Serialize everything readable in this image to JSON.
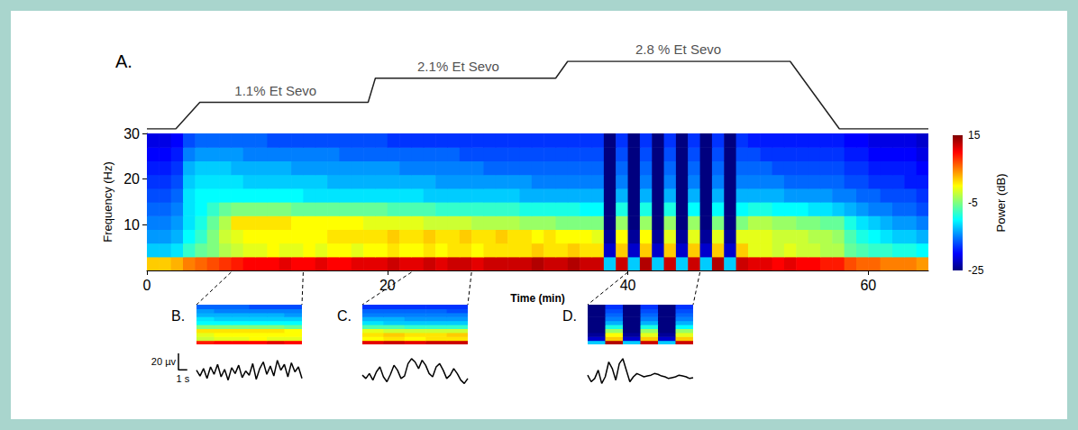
{
  "chart_data": {
    "type": "spectrogram",
    "panel_label": "A.",
    "x_label": "Time (min)",
    "y_label": "Frequency (Hz)",
    "xlim": [
      0,
      65
    ],
    "xticks": [
      0,
      20,
      40,
      60
    ],
    "ylim": [
      0,
      30
    ],
    "yticks": [
      10,
      20,
      30
    ],
    "grid": false,
    "times": [
      0,
      1,
      2,
      3,
      4,
      5,
      6,
      7,
      8,
      9,
      10,
      11,
      12,
      13,
      14,
      15,
      16,
      17,
      18,
      19,
      20,
      21,
      22,
      23,
      24,
      25,
      26,
      27,
      28,
      29,
      30,
      31,
      32,
      33,
      34,
      35,
      36,
      37,
      38,
      39,
      40,
      41,
      42,
      43,
      44,
      45,
      46,
      47,
      48,
      49,
      50,
      51,
      52,
      53,
      54,
      55,
      56,
      57,
      58,
      59,
      60,
      61,
      62,
      63,
      64
    ],
    "frequencies": [
      0,
      3,
      6,
      9,
      12,
      15,
      18,
      21,
      24,
      27
    ],
    "power": [
      [
        2,
        2,
        3,
        5,
        6,
        7,
        8,
        9,
        10,
        10,
        10,
        11,
        10,
        10,
        11,
        10,
        10,
        11,
        11,
        11,
        12,
        11,
        11,
        12,
        11,
        12,
        12,
        11,
        12,
        12,
        12,
        12,
        13,
        12,
        12,
        13,
        12,
        12,
        -12,
        12,
        -12,
        13,
        -12,
        12,
        -12,
        12,
        -12,
        13,
        -12,
        12,
        11,
        11,
        10,
        11,
        10,
        10,
        9,
        9,
        7,
        6,
        6,
        5,
        5,
        5,
        4
      ],
      [
        -12,
        -12,
        -11,
        -8,
        -6,
        -5,
        -3,
        -2,
        -1,
        -1,
        0,
        -1,
        -1,
        0,
        -1,
        0,
        0,
        -1,
        0,
        0,
        1,
        0,
        0,
        1,
        0,
        1,
        1,
        0,
        1,
        1,
        1,
        1,
        2,
        1,
        1,
        2,
        1,
        1,
        -22,
        2,
        -22,
        2,
        -22,
        2,
        -22,
        2,
        -22,
        2,
        -22,
        2,
        -1,
        -1,
        -2,
        -1,
        -2,
        -2,
        -3,
        -3,
        -6,
        -7,
        -8,
        -8,
        -9,
        -9,
        -10
      ],
      [
        -14,
        -14,
        -13,
        -10,
        -8,
        -5,
        -2,
        -1,
        0,
        0,
        0,
        0,
        0,
        0,
        0,
        1,
        1,
        1,
        1,
        1,
        2,
        1,
        1,
        2,
        1,
        1,
        2,
        1,
        1,
        2,
        1,
        1,
        0,
        1,
        0,
        0,
        0,
        -1,
        -24,
        0,
        -24,
        0,
        -24,
        -1,
        -24,
        -1,
        -24,
        -1,
        -24,
        -1,
        -1,
        -1,
        -2,
        -2,
        -2,
        -3,
        -3,
        -4,
        -7,
        -9,
        -10,
        -11,
        -12,
        -12,
        -13
      ],
      [
        -15,
        -15,
        -14,
        -11,
        -9,
        -6,
        -3,
        1,
        1,
        1,
        1,
        1,
        0,
        0,
        0,
        0,
        0,
        0,
        -1,
        -1,
        -1,
        -1,
        -1,
        -2,
        -2,
        -2,
        -2,
        -3,
        -3,
        -3,
        -3,
        -4,
        -4,
        -4,
        -5,
        -5,
        -5,
        -5,
        -25,
        -4,
        -25,
        -4,
        -25,
        -4,
        -25,
        -4,
        -25,
        -5,
        -25,
        -5,
        -3,
        -3,
        -4,
        -4,
        -5,
        -5,
        -6,
        -6,
        -9,
        -11,
        -12,
        -13,
        -14,
        -14,
        -15
      ],
      [
        -16,
        -16,
        -15,
        -11,
        -10,
        -8,
        -6,
        -5,
        -5,
        -5,
        -5,
        -5,
        -6,
        -6,
        -6,
        -6,
        -6,
        -6,
        -6,
        -6,
        -7,
        -7,
        -7,
        -7,
        -8,
        -8,
        -8,
        -8,
        -8,
        -8,
        -8,
        -9,
        -9,
        -9,
        -9,
        -9,
        -10,
        -10,
        -25,
        -9,
        -25,
        -9,
        -25,
        -9,
        -25,
        -10,
        -25,
        -10,
        -25,
        -10,
        -9,
        -9,
        -10,
        -10,
        -10,
        -11,
        -11,
        -12,
        -13,
        -14,
        -15,
        -15,
        -16,
        -16,
        -17
      ],
      [
        -17,
        -17,
        -16,
        -11,
        -10,
        -10,
        -10,
        -10,
        -10,
        -10,
        -10,
        -10,
        -10,
        -11,
        -11,
        -11,
        -11,
        -11,
        -11,
        -11,
        -11,
        -11,
        -11,
        -12,
        -12,
        -12,
        -12,
        -12,
        -12,
        -12,
        -12,
        -13,
        -13,
        -13,
        -13,
        -13,
        -13,
        -13,
        -25,
        -13,
        -25,
        -13,
        -25,
        -13,
        -25,
        -13,
        -25,
        -13,
        -25,
        -13,
        -13,
        -13,
        -13,
        -14,
        -14,
        -14,
        -14,
        -15,
        -15,
        -16,
        -16,
        -17,
        -17,
        -17,
        -18
      ],
      [
        -18,
        -18,
        -17,
        -12,
        -11,
        -11,
        -11,
        -11,
        -12,
        -12,
        -12,
        -12,
        -12,
        -12,
        -12,
        -13,
        -13,
        -13,
        -13,
        -13,
        -13,
        -13,
        -13,
        -13,
        -14,
        -14,
        -14,
        -14,
        -14,
        -14,
        -14,
        -14,
        -15,
        -15,
        -15,
        -15,
        -15,
        -15,
        -25,
        -15,
        -25,
        -15,
        -25,
        -15,
        -25,
        -15,
        -25,
        -15,
        -25,
        -15,
        -15,
        -15,
        -15,
        -16,
        -16,
        -16,
        -16,
        -16,
        -17,
        -17,
        -18,
        -18,
        -18,
        -19,
        -19
      ],
      [
        -19,
        -19,
        -18,
        -13,
        -12,
        -12,
        -12,
        -13,
        -13,
        -13,
        -13,
        -13,
        -14,
        -14,
        -14,
        -14,
        -14,
        -14,
        -14,
        -14,
        -14,
        -15,
        -15,
        -15,
        -15,
        -15,
        -15,
        -15,
        -16,
        -16,
        -16,
        -16,
        -16,
        -16,
        -16,
        -16,
        -16,
        -16,
        -25,
        -16,
        -25,
        -16,
        -25,
        -16,
        -25,
        -16,
        -25,
        -16,
        -25,
        -16,
        -16,
        -16,
        -17,
        -17,
        -17,
        -17,
        -17,
        -17,
        -18,
        -18,
        -19,
        -19,
        -19,
        -19,
        -20
      ],
      [
        -20,
        -20,
        -19,
        -15,
        -14,
        -14,
        -14,
        -14,
        -15,
        -15,
        -15,
        -15,
        -15,
        -15,
        -15,
        -15,
        -16,
        -16,
        -16,
        -16,
        -16,
        -16,
        -16,
        -16,
        -16,
        -16,
        -17,
        -17,
        -17,
        -17,
        -17,
        -17,
        -17,
        -17,
        -17,
        -17,
        -17,
        -17,
        -25,
        -17,
        -25,
        -17,
        -25,
        -17,
        -25,
        -17,
        -25,
        -17,
        -25,
        -17,
        -17,
        -18,
        -18,
        -18,
        -18,
        -18,
        -18,
        -18,
        -19,
        -19,
        -20,
        -20,
        -20,
        -20,
        -21
      ],
      [
        -21,
        -21,
        -20,
        -17,
        -16,
        -16,
        -16,
        -16,
        -16,
        -16,
        -17,
        -17,
        -17,
        -17,
        -17,
        -17,
        -17,
        -17,
        -17,
        -17,
        -18,
        -18,
        -18,
        -18,
        -18,
        -18,
        -18,
        -18,
        -18,
        -18,
        -18,
        -18,
        -18,
        -18,
        -18,
        -18,
        -18,
        -18,
        -25,
        -18,
        -25,
        -18,
        -25,
        -18,
        -25,
        -18,
        -25,
        -18,
        -25,
        -18,
        -19,
        -19,
        -19,
        -19,
        -19,
        -19,
        -19,
        -19,
        -20,
        -20,
        -21,
        -21,
        -21,
        -21,
        -22
      ]
    ],
    "colorbar": {
      "label": "Power (dB)",
      "lim": [
        -25,
        15
      ],
      "ticks": [
        -25,
        -5,
        15
      ]
    },
    "concentration": {
      "x": [
        0,
        2.4,
        4.4,
        18.4,
        19,
        34,
        35,
        53.5,
        57.6,
        65
      ],
      "values": [
        0,
        0,
        1.1,
        1.1,
        2.1,
        2.1,
        2.8,
        2.8,
        0,
        0
      ],
      "ylim": [
        0,
        2.8
      ],
      "annotations": [
        {
          "text": "1.1% Et Sevo",
          "x": 10.7,
          "y": 1.1
        },
        {
          "text": "2.1% Et Sevo",
          "x": 25.9,
          "y": 2.1
        },
        {
          "text": "2.8 % Et Sevo",
          "x": 44.2,
          "y": 2.8
        }
      ]
    },
    "insets": [
      {
        "label": "B.",
        "xlim": [
          7,
          13
        ],
        "trace": {
          "xlim": [
            0,
            12
          ],
          "ylim": [
            -30,
            30
          ],
          "x": [
            0,
            0.4,
            0.8,
            1.2,
            1.6,
            2,
            2.4,
            2.8,
            3.2,
            3.6,
            4,
            4.4,
            4.8,
            5.2,
            5.6,
            6,
            6.4,
            6.8,
            7.2,
            7.6,
            8,
            8.4,
            8.8,
            9.2,
            9.6,
            10,
            10.4,
            10.8,
            11.2,
            11.6,
            12
          ],
          "values": [
            2,
            -5,
            4,
            -8,
            6,
            -3,
            9,
            -6,
            3,
            -10,
            5,
            -2,
            8,
            -7,
            1,
            -4,
            10,
            -9,
            4,
            12,
            -3,
            7,
            -5,
            14,
            2,
            9,
            -6,
            11,
            0,
            6,
            -8
          ]
        }
      },
      {
        "label": "C.",
        "xlim": [
          22,
          27
        ],
        "trace": {
          "xlim": [
            0,
            12
          ],
          "ylim": [
            -30,
            30
          ],
          "x": [
            0,
            0.4,
            0.8,
            1.2,
            1.6,
            2,
            2.4,
            2.8,
            3.2,
            3.6,
            4,
            4.4,
            4.8,
            5.2,
            5.6,
            6,
            6.4,
            6.8,
            7.2,
            7.6,
            8,
            8.4,
            8.8,
            9.2,
            9.6,
            10,
            10.4,
            10.8,
            11.2,
            11.6,
            12
          ],
          "values": [
            -4,
            -8,
            -2,
            -10,
            0,
            6,
            -6,
            -12,
            -3,
            8,
            2,
            -8,
            -5,
            10,
            16,
            12,
            4,
            14,
            8,
            -2,
            -6,
            6,
            10,
            2,
            -8,
            -4,
            4,
            -2,
            -10,
            -14,
            -8
          ]
        }
      },
      {
        "label": "D.",
        "xlim": [
          40,
          46
        ],
        "trace": {
          "xlim": [
            0,
            12
          ],
          "ylim": [
            -30,
            30
          ],
          "x": [
            0,
            0.4,
            0.8,
            1.2,
            1.6,
            2,
            2.4,
            2.8,
            3.2,
            3.6,
            4,
            4.4,
            4.8,
            5.2,
            5.6,
            6,
            6.4,
            6.8,
            7.2,
            7.6,
            8,
            8.4,
            8.8,
            9.2,
            9.6,
            10,
            10.4,
            10.8,
            11.2,
            11.6,
            12
          ],
          "values": [
            -4,
            -12,
            -8,
            2,
            -14,
            -6,
            12,
            4,
            -10,
            10,
            16,
            2,
            -12,
            -6,
            -2,
            -4,
            -6,
            -5,
            -4,
            -2,
            -3,
            -5,
            -6,
            -8,
            -7,
            -6,
            -4,
            -5,
            -6,
            -8,
            -7
          ]
        }
      }
    ],
    "scale_bar": {
      "amplitude": 20,
      "amplitude_label": "20 µv",
      "time": 1,
      "time_label": "1 s"
    }
  }
}
